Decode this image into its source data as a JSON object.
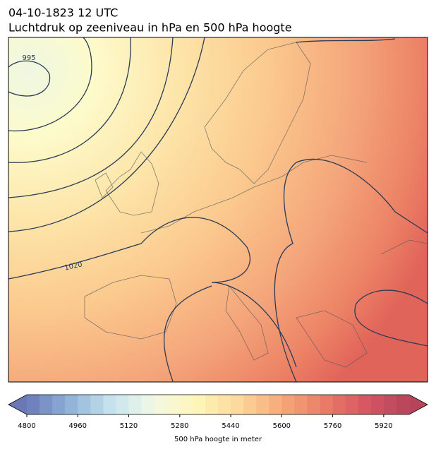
{
  "header": {
    "title": "04-10-1823 12 UTC",
    "subtitle": "Luchtdruk op zeeniveau in hPa en 500 hPa hoogte"
  },
  "map": {
    "contour_labels": [
      995,
      1020
    ]
  },
  "colorbar": {
    "label": "500 hPa hoogte in meter",
    "range": [
      4800,
      6000
    ],
    "step": 40,
    "ticks": [
      4800,
      4960,
      5120,
      5280,
      5440,
      5600,
      5760,
      5920
    ],
    "colors": [
      "#6b78b8",
      "#8fb3d6",
      "#c7e3ee",
      "#f3f9e4",
      "#fdf5b8",
      "#fcd79a",
      "#f6a878",
      "#ea7c68",
      "#d65563",
      "#b6445b"
    ]
  }
}
